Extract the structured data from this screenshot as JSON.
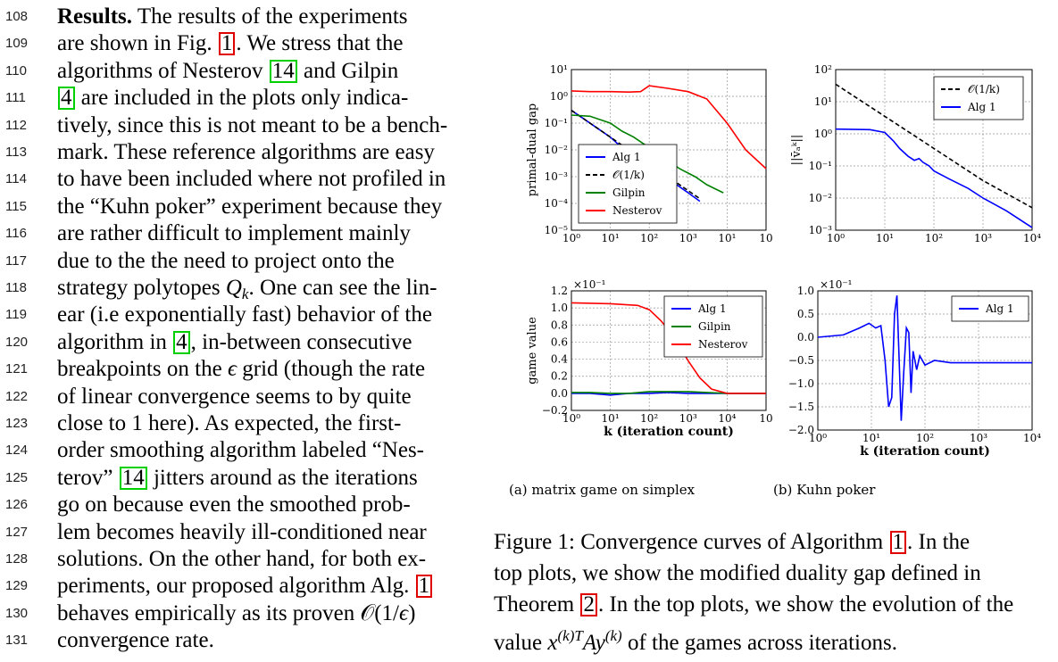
{
  "left_column": {
    "line_numbers": [
      "108",
      "109",
      "110",
      "111",
      "112",
      "113",
      "114",
      "115",
      "116",
      "117",
      "118",
      "119",
      "120",
      "121",
      "122",
      "123",
      "124",
      "125",
      "126",
      "127",
      "128",
      "129",
      "130",
      "131"
    ],
    "lines": [
      {
        "pre": "",
        "bold": "Results.",
        "post": "    The results of the experiments"
      },
      {
        "pre": "are shown in Fig. ",
        "ref": "1",
        "refc": "red",
        "post": ".  We stress that the"
      },
      {
        "pre": "algorithms of Nesterov ",
        "ref": "14",
        "refc": "green",
        "post": " and Gilpin"
      },
      {
        "pre": "",
        "ref": "4",
        "refc": "green",
        "post": " are included in the plots only indica-"
      },
      {
        "pre": "tively, since this is not meant to be a bench-"
      },
      {
        "pre": "mark. These reference algorithms are easy"
      },
      {
        "pre": "to have been included where not profiled in"
      },
      {
        "pre": "the “Kuhn poker” experiment because they"
      },
      {
        "pre": "are rather difficult to implement mainly"
      },
      {
        "pre": "due to the the need to project onto the"
      },
      {
        "pre": "strategy polytopes ",
        "math": "Q",
        "sub": "k",
        "post": ". One can see the lin-"
      },
      {
        "pre": "ear (i.e exponentially fast) behavior of the"
      },
      {
        "pre": "algorithm in ",
        "ref": "4",
        "refc": "green",
        "post": ", in-between consecutive"
      },
      {
        "pre": "breakpoints on the ",
        "math": "ϵ",
        "post": " grid (though the rate"
      },
      {
        "pre": "of linear convergence seems to by quite"
      },
      {
        "pre": "close to 1 here).  As expected, the first-"
      },
      {
        "pre": "order smoothing algorithm labeled “Nes-"
      },
      {
        "pre": "terov” ",
        "ref": "14",
        "refc": "green",
        "post": " jitters around as the iterations"
      },
      {
        "pre": "go on because even the smoothed prob-"
      },
      {
        "pre": "lem becomes heavily ill-conditioned near"
      },
      {
        "pre": "solutions. On the other hand, for both ex-"
      },
      {
        "pre": "periments, our proposed algorithm Alg. ",
        "ref": "1",
        "refc": "red",
        "post": ""
      },
      {
        "pre": "behaves empirically as its proven 𝒪(1/",
        "math": "ϵ",
        "post": ")"
      },
      {
        "pre": "convergence rate."
      }
    ]
  },
  "figure": {
    "subcaption_a": "(a)   matrix game on simplex",
    "subcaption_b": "(b)   Kuhn poker",
    "caption_lines": [
      {
        "pre": "Figure 1:  Convergence curves of Algorithm ",
        "ref": "1",
        "refc": "red",
        "post": ".  In the"
      },
      {
        "pre": "top plots, we show the modified duality gap defined in"
      },
      {
        "pre": "Theorem ",
        "ref": "2",
        "refc": "red",
        "post": ".  In the top plots, we show the evolution of the"
      },
      {
        "pre": "value ",
        "math": "x",
        "sup": "(k)T",
        "mid": "Ay",
        "sup2": "(k)",
        "post": " of the games across iterations."
      }
    ]
  },
  "chart_data": [
    {
      "type": "line",
      "panel": "top-left",
      "ylabel": "primal-dual gap",
      "xlabel": "",
      "xscale": "log",
      "yscale": "log",
      "xlim": [
        1,
        100000
      ],
      "ylim": [
        1e-05,
        10
      ],
      "xticklabels": [
        "10⁰",
        "10¹",
        "10²",
        "10³",
        "10¹",
        "10"
      ],
      "yticklabels": [
        "10¹",
        "10⁰",
        "10⁻¹",
        "10⁻²",
        "10⁻³",
        "10⁻⁴",
        "10⁻⁵"
      ],
      "legend": "lower-left",
      "grid": true,
      "series": [
        {
          "name": "Alg 1",
          "color": "#0000ff",
          "style": "solid",
          "x": [
            1,
            2,
            5,
            10,
            20,
            50,
            100,
            200,
            500,
            1000,
            2000
          ],
          "y": [
            0.3,
            0.15,
            0.06,
            0.03,
            0.012,
            0.004,
            0.002,
            0.001,
            0.0005,
            0.00025,
            0.00012
          ]
        },
        {
          "name": "𝒪(1/k)",
          "color": "#000000",
          "style": "dashed",
          "x": [
            1,
            3,
            10,
            30,
            100,
            300,
            1000,
            2000
          ],
          "y": [
            0.3,
            0.1,
            0.03,
            0.01,
            0.003,
            0.001,
            0.0003,
            0.00015
          ]
        },
        {
          "name": "Gilpin",
          "color": "#008000",
          "style": "solid",
          "x": [
            1,
            3,
            10,
            20,
            40,
            80,
            150,
            300,
            600,
            1500,
            3000,
            8000
          ],
          "y": [
            0.2,
            0.18,
            0.1,
            0.05,
            0.03,
            0.015,
            0.008,
            0.004,
            0.002,
            0.001,
            0.0005,
            0.00025
          ]
        },
        {
          "name": "Nesterov",
          "color": "#ff0000",
          "style": "solid",
          "x": [
            1,
            3,
            10,
            30,
            60,
            100,
            300,
            1000,
            3000,
            10000,
            30000,
            100000
          ],
          "y": [
            1.6,
            1.5,
            1.5,
            1.45,
            1.5,
            2.5,
            2.0,
            1.5,
            0.8,
            0.1,
            0.01,
            0.002
          ]
        }
      ]
    },
    {
      "type": "line",
      "panel": "top-right",
      "ylabel": "||v̄ₐᵏ||",
      "xlabel": "",
      "xscale": "log",
      "yscale": "log",
      "xlim": [
        1,
        10000
      ],
      "ylim": [
        0.001,
        100
      ],
      "xticklabels": [
        "10⁰",
        "10¹",
        "10²",
        "10³",
        "10⁴"
      ],
      "yticklabels": [
        "10²",
        "10¹",
        "10⁰",
        "10⁻¹",
        "10⁻²",
        "10⁻³"
      ],
      "legend": "top-right",
      "grid": true,
      "series": [
        {
          "name": "𝒪(1/k)",
          "color": "#000000",
          "style": "dashed",
          "x": [
            1,
            10,
            100,
            1000,
            10000
          ],
          "y": [
            35,
            3.5,
            0.35,
            0.035,
            0.005
          ]
        },
        {
          "name": "Alg 1",
          "color": "#0000ff",
          "style": "solid",
          "x": [
            1,
            5,
            10,
            15,
            20,
            30,
            40,
            50,
            60,
            80,
            100,
            200,
            500,
            1000,
            3000,
            10000
          ],
          "y": [
            1.4,
            1.35,
            1.1,
            0.6,
            0.35,
            0.2,
            0.15,
            0.17,
            0.13,
            0.1,
            0.07,
            0.04,
            0.02,
            0.01,
            0.004,
            0.0012
          ]
        }
      ]
    },
    {
      "type": "line",
      "panel": "bottom-left",
      "ylabel": "game value",
      "xlabel": "k (iteration count)",
      "xscale": "log",
      "xlim": [
        1,
        100000
      ],
      "ylim": [
        -0.2,
        1.2
      ],
      "yscale_note": "×10⁻¹",
      "xticklabels": [
        "10⁰",
        "10¹",
        "10²",
        "10³",
        "10⁴",
        "10"
      ],
      "yticklabels": [
        "1.2",
        "1.0",
        "0.8",
        "0.6",
        "0.4",
        "0.2",
        "0.0",
        "−0.2"
      ],
      "legend": "top-right",
      "grid": true,
      "series": [
        {
          "name": "Alg 1",
          "color": "#0000ff",
          "style": "solid",
          "x": [
            1,
            3,
            10,
            30,
            100,
            300,
            1000,
            3000,
            10000,
            100000
          ],
          "y": [
            0.0,
            0.0,
            -0.02,
            0.0,
            0.0,
            0.01,
            0.0,
            0.0,
            0.0,
            0.0
          ]
        },
        {
          "name": "Gilpin",
          "color": "#008000",
          "style": "solid",
          "x": [
            1,
            3,
            10,
            30,
            100,
            300,
            1000,
            3000,
            10000,
            100000
          ],
          "y": [
            0.01,
            0.01,
            0.0,
            0.0,
            0.02,
            0.02,
            0.02,
            0.01,
            0.0,
            0.0
          ]
        },
        {
          "name": "Nesterov",
          "color": "#ff0000",
          "style": "solid",
          "x": [
            1,
            10,
            50,
            100,
            200,
            400,
            700,
            1000,
            2000,
            4000,
            10000,
            100000
          ],
          "y": [
            1.06,
            1.05,
            1.03,
            0.98,
            0.85,
            0.68,
            0.5,
            0.38,
            0.18,
            0.05,
            0.0,
            0.0
          ]
        }
      ]
    },
    {
      "type": "line",
      "panel": "bottom-right",
      "ylabel": "",
      "xlabel": "k (iteration count)",
      "xscale": "log",
      "xlim": [
        1,
        10000
      ],
      "ylim": [
        -2.0,
        1.0
      ],
      "yscale_note": "×10⁻¹",
      "xticklabels": [
        "10⁰",
        "10¹",
        "10²",
        "10³",
        "10⁴"
      ],
      "yticklabels": [
        "1.0",
        "0.5",
        "0.0",
        "−0.5",
        "−1.0",
        "−1.5",
        "−2.0"
      ],
      "legend": "top-right",
      "grid": true,
      "series": [
        {
          "name": "Alg 1",
          "color": "#0000ff",
          "style": "solid",
          "x": [
            1,
            3,
            6,
            9,
            12,
            15,
            18,
            21,
            24,
            27,
            30,
            33,
            36,
            40,
            45,
            50,
            55,
            60,
            70,
            80,
            100,
            150,
            300,
            1000,
            10000
          ],
          "y": [
            0.0,
            0.05,
            0.2,
            0.3,
            0.2,
            0.25,
            -0.5,
            -1.5,
            -1.3,
            0.5,
            0.9,
            -0.5,
            -1.8,
            -0.8,
            0.2,
            0.1,
            -1.2,
            -0.3,
            -0.7,
            -0.4,
            -0.6,
            -0.5,
            -0.55,
            -0.55,
            -0.55
          ]
        }
      ]
    }
  ]
}
